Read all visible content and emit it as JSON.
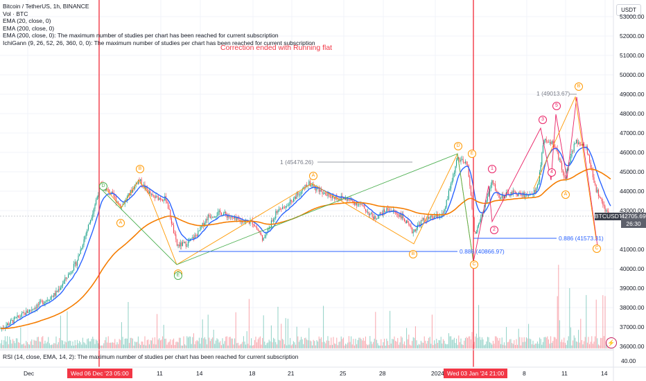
{
  "legend": {
    "title": "Bitcoin / TetherUS, 1h, BINANCE",
    "vol": "Vol · BTC",
    "ema1": "EMA (20, close, 0)",
    "ema2": "EMA (200, close, 0)",
    "ema3": "EMA (200, close, 0): The maximum number of studies per chart has been reached for current subscription",
    "ichi": "IchiGann (9, 26, 52, 26, 360, 0, 0): The maximum number of studies per chart has been reached for current subscription"
  },
  "annotation": "Correction ended with Running flat",
  "currency": "USDT",
  "price_axis": [
    "53000.00",
    "52000.00",
    "51000.00",
    "50000.00",
    "49000.00",
    "48000.00",
    "47000.00",
    "46000.00",
    "45000.00",
    "44000.00",
    "43000.00",
    "41000.00",
    "40000.00",
    "39000.00",
    "38000.00",
    "37000.00",
    "36000.00"
  ],
  "rsi_axis": "40.00",
  "price_tags": {
    "symbol": "BTCUSDT",
    "price": "42705.69",
    "countdown": "26:30"
  },
  "fib_labels": {
    "f1": "1 (45476.26)",
    "f2": "1 (49013.67)",
    "f3": "0.886 (40866.97)",
    "f4": "0.886 (41573.31)"
  },
  "wave_labels": [
    "A",
    "B",
    "C",
    "D",
    "E",
    "A",
    "B",
    "C",
    "D",
    "E",
    "1",
    "2",
    "3",
    "4",
    "5",
    "A",
    "B",
    "C"
  ],
  "rsi_legend": "RSI (14, close, EMA, 14, 2): The maximum number of studies per chart has been reached for current subscription",
  "time_axis": [
    "Dec",
    "11",
    "14",
    "18",
    "21",
    "25",
    "28",
    "2024",
    "8",
    "11",
    "14"
  ],
  "date_markers": [
    "Wed 06 Dec '23   05:00",
    "Wed 03 Jan '24   21:00"
  ],
  "colors": {
    "up": "#089981",
    "down": "#f23645",
    "ema20": "#2962ff",
    "ema200": "#f57c00",
    "wave_orange": "#ff9800",
    "wave_red": "#e91e63",
    "wave_green": "#4caf50",
    "fib_blue": "#2962ff"
  }
}
